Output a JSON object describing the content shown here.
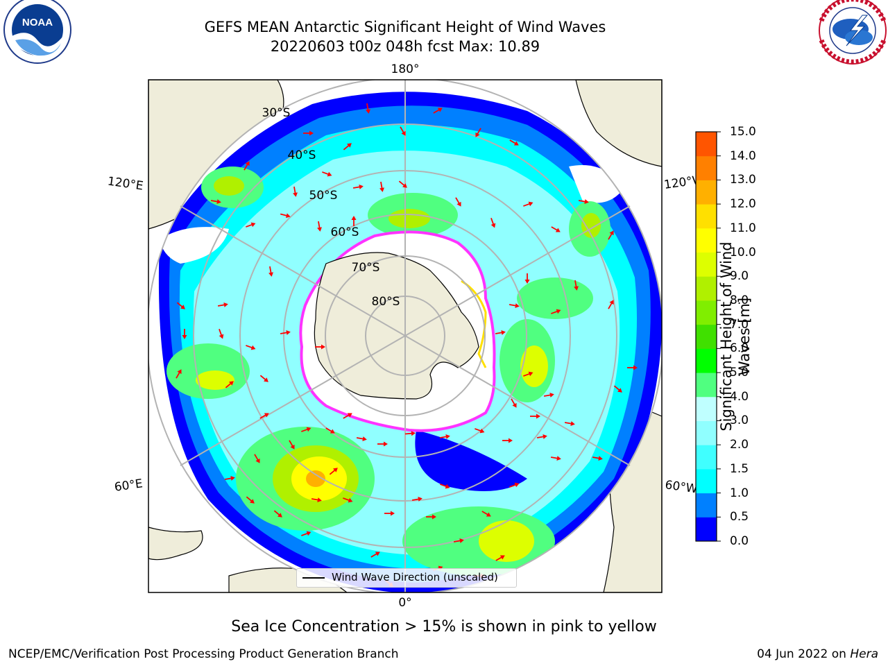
{
  "title_line1": "GEFS MEAN Antarctic Significant Height of Wind Waves",
  "title_line2": "20220603 t00z 048h fcst   Max: 10.89",
  "logos": {
    "left": {
      "name": "noaa-logo",
      "text": "NOAA",
      "ring_text": "NATIONAL OCEANIC AND ATMOSPHERIC ADMINISTRATION · U.S. DEPARTMENT OF COMMERCE"
    },
    "right": {
      "name": "nws-logo",
      "ring_text": "NATIONAL WEATHER SERVICE"
    }
  },
  "map": {
    "projection": "south-polar stereographic",
    "longitude_labels": {
      "top": "180°",
      "bottom": "0°",
      "left_upper": "120°E",
      "left_lower": "60°E",
      "right_upper": "120°W",
      "right_lower": "60°W"
    },
    "latitude_labels": [
      "30°S",
      "40°S",
      "50°S",
      "60°S",
      "70°S",
      "80°S"
    ],
    "legend_label": "Wind Wave Direction (unscaled)",
    "colors": {
      "land": "#efedda",
      "ice_edge": "#ff33ff",
      "arrow": "#ff0000",
      "grid": "#b3b3b3"
    }
  },
  "colorbar": {
    "label_line1": "Significant Height of Wind",
    "label_line2": "Waves [m]",
    "ticks": [
      "0.0",
      "0.5",
      "1.0",
      "1.5",
      "2.0",
      "3.0",
      "4.0",
      "5.0",
      "6.0",
      "7.0",
      "8.0",
      "9.0",
      "10.0",
      "11.0",
      "12.0",
      "13.0",
      "14.0",
      "15.0"
    ],
    "colors": [
      "#0000ff",
      "#0080ff",
      "#00ffff",
      "#40ffff",
      "#90ffff",
      "#bfffff",
      "#50ff80",
      "#00ff00",
      "#40e000",
      "#80ee00",
      "#b0f000",
      "#ddff00",
      "#ffff00",
      "#ffe000",
      "#ffb000",
      "#ff8000",
      "#ff5500",
      "#ff2000",
      "#ff0000"
    ]
  },
  "footnote": "Sea Ice Concentration > 15% is shown in pink to yellow",
  "credit": "NCEP/EMC/Verification Post Processing Product Generation Branch",
  "datestamp": {
    "date": "04 Jun 2022 on",
    "host": "Hera"
  }
}
